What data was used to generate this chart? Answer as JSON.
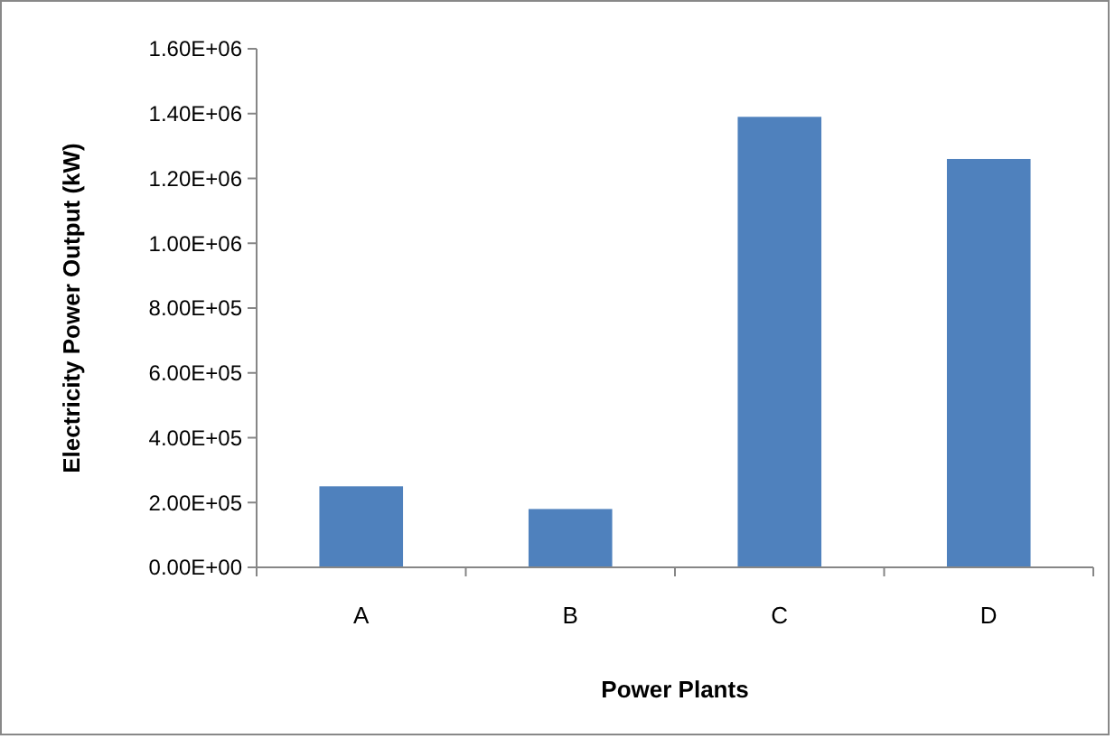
{
  "chart_data": {
    "type": "bar",
    "xlabel": "Power Plants",
    "ylabel": "Electricity Power Output (kW)",
    "categories": [
      "A",
      "B",
      "C",
      "D"
    ],
    "values": [
      250000,
      180000,
      1390000,
      1260000
    ],
    "color": "#4f81bd",
    "ylim": [
      0,
      1600000
    ],
    "yticks": [
      {
        "value": 0,
        "label": "0.00E+00"
      },
      {
        "value": 200000,
        "label": "2.00E+05"
      },
      {
        "value": 400000,
        "label": "4.00E+05"
      },
      {
        "value": 600000,
        "label": "6.00E+05"
      },
      {
        "value": 800000,
        "label": "8.00E+05"
      },
      {
        "value": 1000000,
        "label": "1.00E+06"
      },
      {
        "value": 1200000,
        "label": "1.20E+06"
      },
      {
        "value": 1400000,
        "label": "1.40E+06"
      },
      {
        "value": 1600000,
        "label": "1.60E+06"
      }
    ],
    "grid": false
  }
}
